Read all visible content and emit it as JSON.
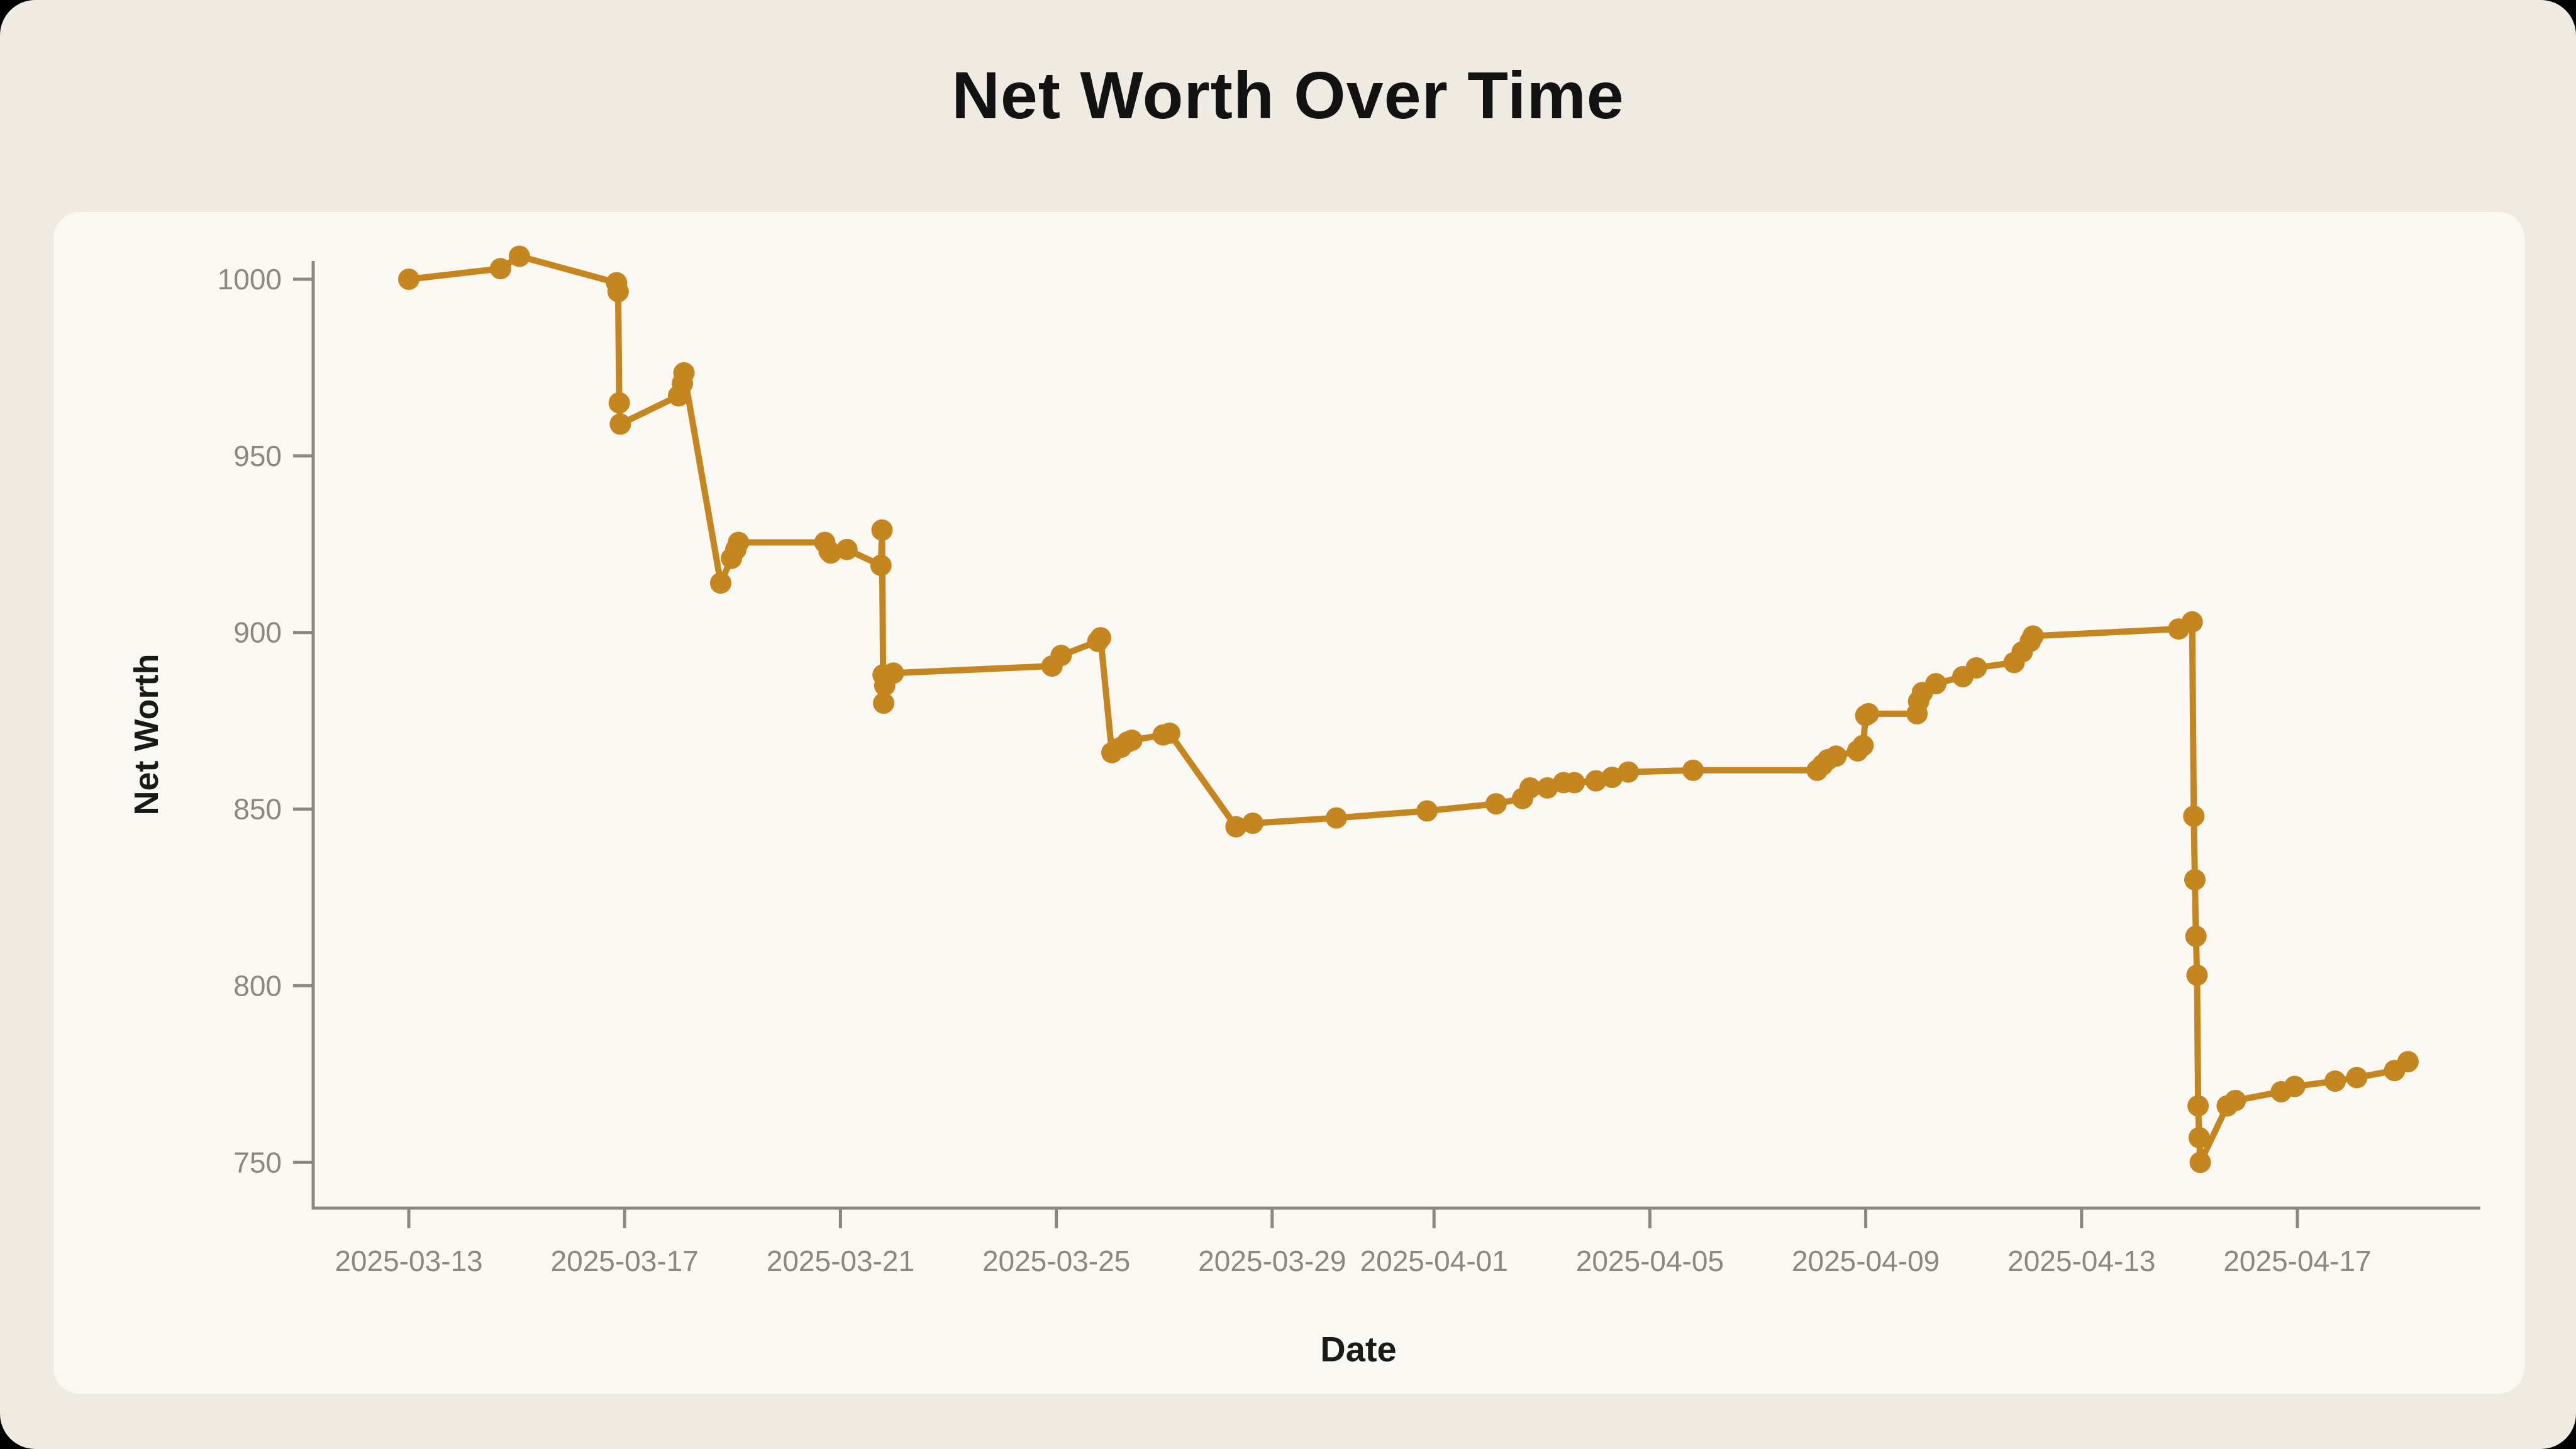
{
  "page": {
    "title": "Net Worth Over Time"
  },
  "colors": {
    "outer_background": "#efebe2",
    "card_background": "#faf8f2",
    "series_line": "#c6861f",
    "axis_spine": "#8a8880",
    "tick_label": "#8b897f",
    "text_dark": "#141414"
  },
  "chart_data": {
    "type": "line",
    "title": "Net Worth Over Time",
    "xlabel": "Date",
    "ylabel": "Net Worth",
    "grid": false,
    "legend": "none",
    "marker": "circle",
    "x_unit": "t = days since 2025-03-13",
    "ylim": [
      737,
      1006
    ],
    "xlim_days": [
      -1.8,
      38.4
    ],
    "y_ticks": [
      750,
      800,
      850,
      900,
      950,
      1000
    ],
    "x_tick_labels": [
      "2025-03-13",
      "2025-03-17",
      "2025-03-21",
      "2025-03-25",
      "2025-03-29",
      "2025-04-01",
      "2025-04-05",
      "2025-04-09",
      "2025-04-13",
      "2025-04-17"
    ],
    "series": [
      {
        "name": "Net Worth",
        "color": "#c6861f",
        "points": [
          [
            0.0,
            1000
          ],
          [
            1.7,
            1003
          ],
          [
            2.05,
            1006.5
          ],
          [
            3.85,
            999
          ],
          [
            3.88,
            996.5
          ],
          [
            3.9,
            965
          ],
          [
            3.92,
            959
          ],
          [
            5.0,
            967
          ],
          [
            5.07,
            970.5
          ],
          [
            5.1,
            973.5
          ],
          [
            5.78,
            914
          ],
          [
            5.98,
            921
          ],
          [
            6.06,
            923.5
          ],
          [
            6.11,
            925.5
          ],
          [
            7.71,
            925.5
          ],
          [
            7.79,
            923
          ],
          [
            7.82,
            922.5
          ],
          [
            8.12,
            923.5
          ],
          [
            8.75,
            919
          ],
          [
            8.77,
            929
          ],
          [
            8.79,
            888
          ],
          [
            8.8,
            880
          ],
          [
            8.82,
            885
          ],
          [
            8.98,
            888.5
          ],
          [
            11.92,
            890.5
          ],
          [
            12.09,
            893.5
          ],
          [
            12.77,
            897.5
          ],
          [
            12.82,
            898.5
          ],
          [
            13.03,
            866
          ],
          [
            13.2,
            867.5
          ],
          [
            13.32,
            869
          ],
          [
            13.4,
            869.5
          ],
          [
            13.98,
            871
          ],
          [
            14.1,
            871.5
          ],
          [
            15.33,
            845
          ],
          [
            15.64,
            846
          ],
          [
            17.19,
            847.5
          ],
          [
            18.87,
            849.5
          ],
          [
            20.15,
            851.5
          ],
          [
            20.64,
            853
          ],
          [
            20.78,
            856
          ],
          [
            21.1,
            856
          ],
          [
            21.4,
            857.5
          ],
          [
            21.6,
            857.5
          ],
          [
            22.0,
            858
          ],
          [
            22.3,
            859
          ],
          [
            22.6,
            860.5
          ],
          [
            23.8,
            861
          ],
          [
            26.1,
            861
          ],
          [
            26.2,
            862.5
          ],
          [
            26.3,
            864
          ],
          [
            26.45,
            865
          ],
          [
            26.85,
            866.5
          ],
          [
            26.95,
            868
          ],
          [
            27.0,
            876.5
          ],
          [
            27.05,
            877
          ],
          [
            27.95,
            877
          ],
          [
            27.98,
            880.5
          ],
          [
            28.05,
            883
          ],
          [
            28.3,
            885.5
          ],
          [
            28.8,
            887.5
          ],
          [
            29.05,
            890
          ],
          [
            29.75,
            891.5
          ],
          [
            29.9,
            894.5
          ],
          [
            30.05,
            897.5
          ],
          [
            30.1,
            899
          ],
          [
            32.8,
            901
          ],
          [
            33.05,
            903
          ],
          [
            33.08,
            848
          ],
          [
            33.1,
            830
          ],
          [
            33.12,
            814
          ],
          [
            33.14,
            803
          ],
          [
            33.16,
            766
          ],
          [
            33.18,
            757
          ],
          [
            33.2,
            750
          ],
          [
            33.7,
            766
          ],
          [
            33.85,
            767.5
          ],
          [
            34.7,
            770
          ],
          [
            34.95,
            771.5
          ],
          [
            35.7,
            773
          ],
          [
            36.1,
            774
          ],
          [
            36.8,
            776
          ],
          [
            37.05,
            778.5
          ]
        ]
      }
    ]
  }
}
